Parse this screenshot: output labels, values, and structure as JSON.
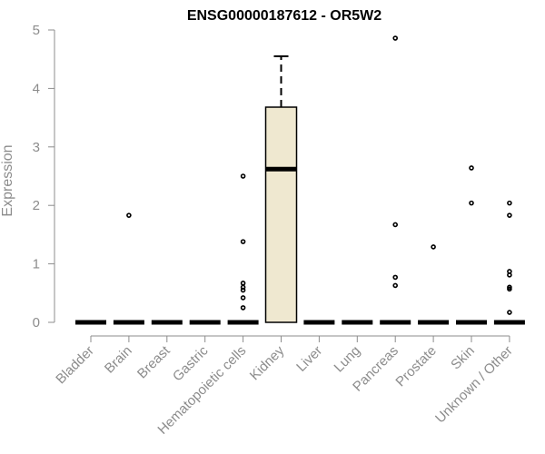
{
  "chart_data": {
    "type": "box",
    "title": "ENSG00000187612 - OR5W2",
    "ylabel": "Expression",
    "xlabel": "",
    "ylim": [
      0,
      5
    ],
    "yticks": [
      0,
      1,
      2,
      3,
      4,
      5
    ],
    "grid": false,
    "colors": {
      "box_fill": "#efe8d0",
      "stroke": "#000000",
      "axis": "#8c8c8c"
    },
    "categories": [
      "Bladder",
      "Brain",
      "Breast",
      "Gastric",
      "Hematopoietic cells",
      "Kidney",
      "Liver",
      "Lung",
      "Pancreas",
      "Prostate",
      "Skin",
      "Unknown / Other"
    ],
    "boxes": [
      {
        "category": "Bladder",
        "min": 0,
        "q1": 0,
        "median": 0,
        "q3": 0,
        "max": 0,
        "outliers": []
      },
      {
        "category": "Brain",
        "min": 0,
        "q1": 0,
        "median": 0,
        "q3": 0,
        "max": 0,
        "outliers": [
          1.83
        ]
      },
      {
        "category": "Breast",
        "min": 0,
        "q1": 0,
        "median": 0,
        "q3": 0,
        "max": 0,
        "outliers": []
      },
      {
        "category": "Gastric",
        "min": 0,
        "q1": 0,
        "median": 0,
        "q3": 0,
        "max": 0,
        "outliers": []
      },
      {
        "category": "Hematopoietic cells",
        "min": 0,
        "q1": 0,
        "median": 0,
        "q3": 0,
        "max": 0,
        "outliers": [
          2.5,
          1.38,
          0.67,
          0.6,
          0.55,
          0.42,
          0.25
        ]
      },
      {
        "category": "Kidney",
        "min": 0,
        "q1": 0,
        "median": 2.62,
        "q3": 3.68,
        "max": 4.55,
        "outliers": []
      },
      {
        "category": "Liver",
        "min": 0,
        "q1": 0,
        "median": 0,
        "q3": 0,
        "max": 0,
        "outliers": []
      },
      {
        "category": "Lung",
        "min": 0,
        "q1": 0,
        "median": 0,
        "q3": 0,
        "max": 0,
        "outliers": []
      },
      {
        "category": "Pancreas",
        "min": 0,
        "q1": 0,
        "median": 0,
        "q3": 0,
        "max": 0,
        "outliers": [
          4.86,
          1.67,
          0.77,
          0.63
        ]
      },
      {
        "category": "Prostate",
        "min": 0,
        "q1": 0,
        "median": 0,
        "q3": 0,
        "max": 0,
        "outliers": [
          1.29
        ]
      },
      {
        "category": "Skin",
        "min": 0,
        "q1": 0,
        "median": 0,
        "q3": 0,
        "max": 0,
        "outliers": [
          2.64,
          2.04
        ]
      },
      {
        "category": "Unknown / Other",
        "min": 0,
        "q1": 0,
        "median": 0,
        "q3": 0,
        "max": 0,
        "outliers": [
          2.04,
          1.83,
          0.87,
          0.81,
          0.6,
          0.57,
          0.17
        ]
      }
    ]
  }
}
